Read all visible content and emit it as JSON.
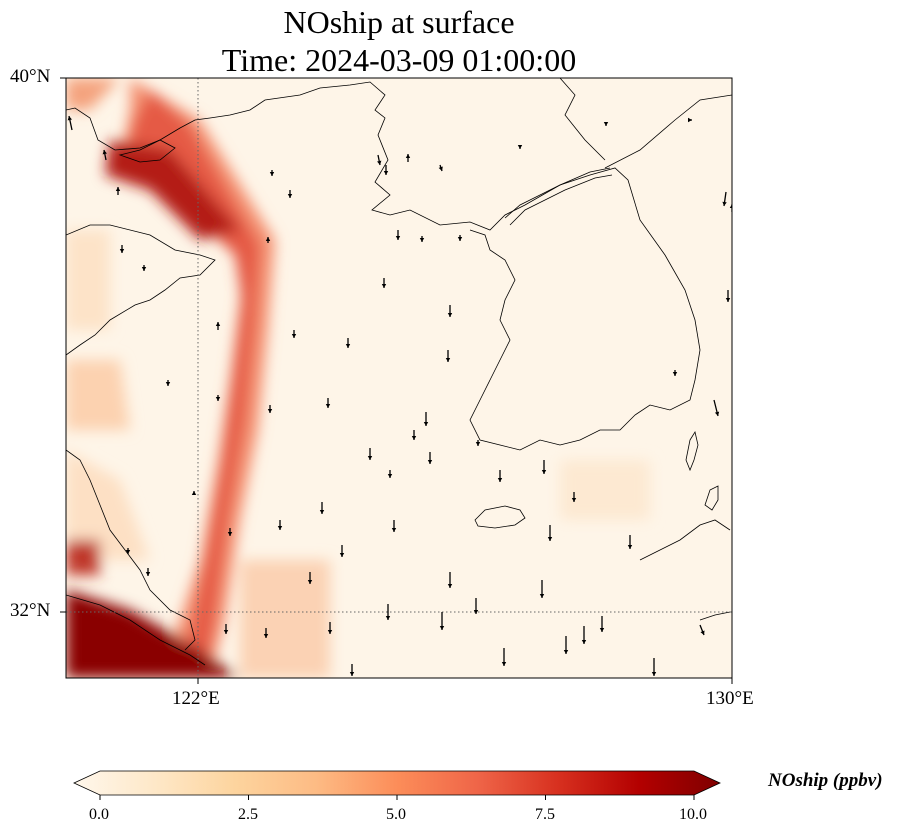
{
  "title": "NOship at surface",
  "subtitle": "Time: 2024-03-09 01:00:00",
  "axes": {
    "lat_ticks": [
      "40°N",
      "32°N"
    ],
    "lon_ticks": [
      "122°E",
      "130°E"
    ],
    "lon_range": [
      120,
      130
    ],
    "lat_range": [
      31,
      40
    ],
    "gridlines": "dotted at 122°E and 32°N"
  },
  "colorbar": {
    "label": "NOship (ppbv)",
    "ticks": [
      "0.0",
      "2.5",
      "5.0",
      "7.5",
      "10.0"
    ],
    "range": [
      0,
      10
    ],
    "colormap": "OrRd",
    "extend": "both"
  },
  "chart_data": {
    "type": "heatmap",
    "description_units": "ppbv",
    "x_range": [
      120,
      130
    ],
    "y_range": [
      31,
      40
    ],
    "features": {
      "shipping_lane_peak": "~10 ppbv along Bohai Strait (121°E, 38.5°N) and Yangtze mouth (120–122°E, 31–31.5°N)",
      "lane_values": "6–8 ppbv along coastal route near 122.5°E from 37°N to 32°N",
      "open_sea": "0.3–1 ppbv over Yellow Sea and Korea"
    },
    "vector_field": "wind arrows mostly pointing south"
  }
}
